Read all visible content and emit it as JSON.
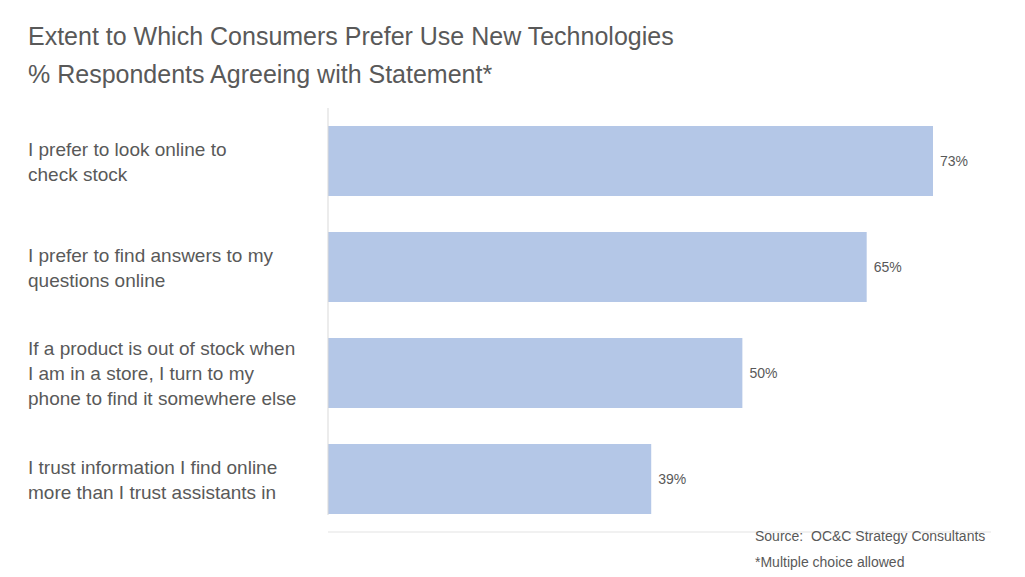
{
  "chart_data": {
    "type": "bar",
    "orientation": "horizontal",
    "title": "Extent to Which Consumers Prefer Use New Technologies",
    "subtitle": "% Respondents Agreeing with Statement*",
    "categories": [
      "I prefer to look online to\ncheck stock",
      "I prefer to find answers to my\nquestions online",
      "If a product is out of stock when\nI am in a store, I turn to my\nphone to find it somewhere else",
      "I trust information I find online\nmore than I trust assistants in"
    ],
    "values": [
      73,
      65,
      50,
      39
    ],
    "value_labels": [
      "73%",
      "65%",
      "50%",
      "39%"
    ],
    "color": "#b4c7e7",
    "xlim": [
      0,
      80
    ],
    "grid": false,
    "data_labels": true,
    "tick_labels": "y",
    "annotations": [
      "Source:  OC&C Strategy Consultants",
      "*Multiple choice allowed"
    ]
  }
}
